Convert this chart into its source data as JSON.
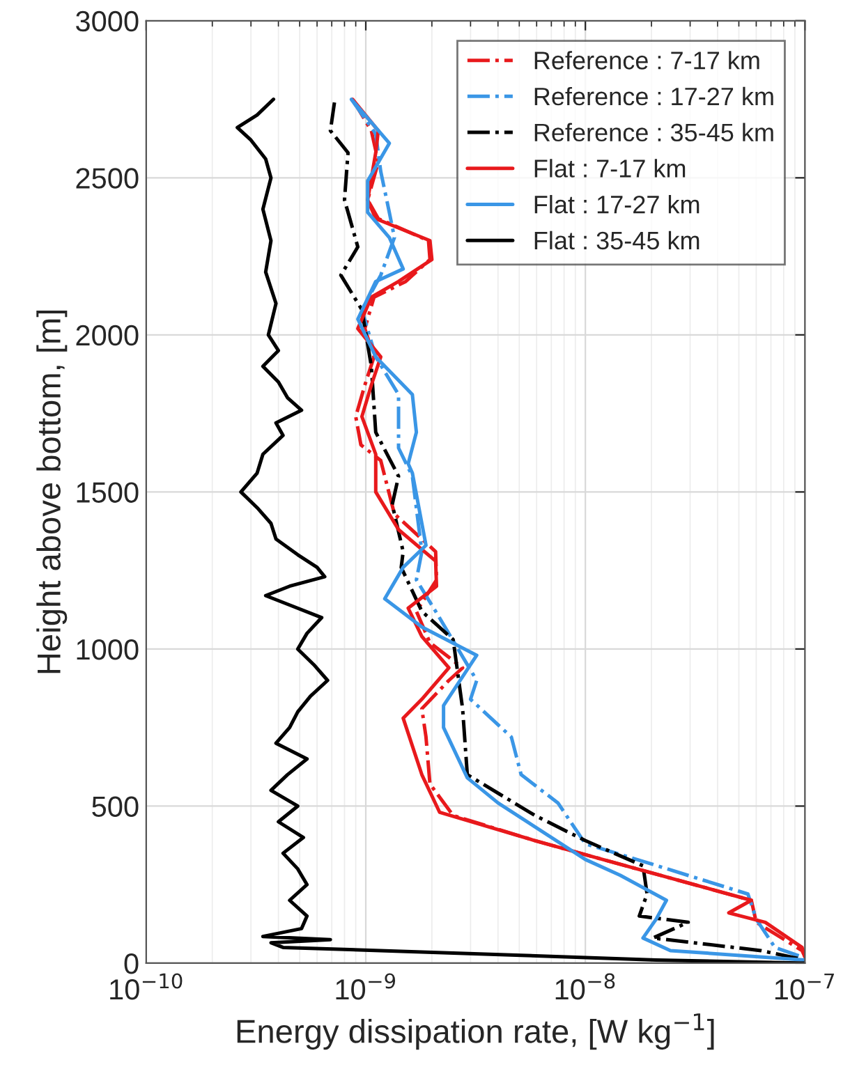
{
  "chart_data": {
    "type": "line",
    "xlabel": "Energy dissipation rate, [W kg$^{−1}$]",
    "ylabel": "Height above bottom, [m]",
    "log": "x",
    "xlim": [
      1e-10,
      1e-07
    ],
    "xticks": [
      {
        "value": 1e-10,
        "label": "10$^{−10}$"
      },
      {
        "value": 1e-09,
        "label": "10$^{−9}$"
      },
      {
        "value": 1e-08,
        "label": "10$^{−8}$"
      },
      {
        "value": 1e-07,
        "label": "10$^{−7}$"
      }
    ],
    "ylim": [
      0,
      3000
    ],
    "yticks": [
      0,
      500,
      1000,
      1500,
      2000,
      2500,
      3000
    ],
    "grid": true,
    "legend": "top right",
    "series": [
      {
        "name": "Reference : 7-17 km",
        "color": "#e8191c",
        "line_style": "dashdot",
        "x": [
          8.7e-10,
          1.06e-09,
          1.14e-09,
          1.02e-09,
          1.14e-09,
          1.93e-09,
          1.96e-09,
          1.52e-09,
          1.09e-09,
          9.9e-10,
          1.09e-09,
          9.9e-10,
          9e-10,
          9.5e-10,
          1.17e-09,
          1.35e-09,
          2.08e-09,
          2.1e-09,
          1.7e-09,
          1.96e-09,
          2.76e-09,
          2.39e-09,
          1.8e-09,
          1.88e-09,
          1.96e-09,
          2.5e-09,
          5.9e-09,
          1.2e-08,
          5.7e-08,
          6e-08,
          9.7e-08,
          1e-07
        ],
        "values": [
          2750,
          2650,
          2550,
          2430,
          2370,
          2300,
          2240,
          2170,
          2120,
          2020,
          1930,
          1840,
          1740,
          1650,
          1600,
          1430,
          1310,
          1220,
          1120,
          1020,
          940,
          900,
          810,
          720,
          570,
          470,
          390,
          330,
          200,
          130,
          40,
          20
        ]
      },
      {
        "name": "Reference : 17-27 km",
        "color": "#3a96e6",
        "line_style": "dashdot",
        "x": [
          8.6e-10,
          1.11e-09,
          1.17e-09,
          1.28e-09,
          1.35e-09,
          1.17e-09,
          9.6e-10,
          1.11e-09,
          1.41e-09,
          1.41e-09,
          1.63e-09,
          1.8e-09,
          1.7e-09,
          2.08e-09,
          3.2e-09,
          3e-09,
          4.6e-09,
          5.1e-09,
          7.5e-09,
          1e-08,
          1.91e-08,
          5.5e-08,
          6e-08,
          7.3e-08,
          9.7e-08
        ],
        "values": [
          2750,
          2640,
          2520,
          2390,
          2310,
          2190,
          2080,
          1930,
          1810,
          1640,
          1550,
          1310,
          1220,
          1120,
          900,
          840,
          720,
          600,
          510,
          380,
          320,
          220,
          140,
          50,
          20
        ]
      },
      {
        "name": "Reference : 35-45 km",
        "color": "#000000",
        "line_style": "dashdot",
        "x": [
          7.2e-10,
          6.9e-10,
          8.3e-10,
          8e-10,
          9.2e-10,
          7.7e-10,
          9.6e-10,
          1.06e-09,
          1.11e-09,
          1.41e-09,
          1.32e-09,
          1.48e-09,
          1.45e-09,
          1.8e-09,
          2.5e-09,
          2.76e-09,
          2.9e-09,
          5.9e-09,
          1e-08,
          1.83e-08,
          1.91e-08,
          1.76e-08,
          2.94e-08,
          2.03e-08,
          6.3e-08,
          1e-07
        ],
        "values": [
          2740,
          2650,
          2580,
          2430,
          2280,
          2190,
          2080,
          1900,
          1690,
          1550,
          1460,
          1310,
          1260,
          1120,
          1030,
          810,
          600,
          470,
          390,
          310,
          220,
          150,
          130,
          80,
          40,
          10
        ]
      },
      {
        "name": "Flat : 7-17 km",
        "color": "#e8191c",
        "line_style": "solid",
        "x": [
          8.7e-10,
          1.14e-09,
          1.11e-09,
          1.02e-09,
          1.11e-09,
          1.96e-09,
          2e-09,
          1.41e-09,
          1.06e-09,
          9.2e-10,
          1.17e-09,
          1.06e-09,
          9.6e-10,
          1.11e-09,
          1.11e-09,
          1.11e-09,
          1.41e-09,
          2.08e-09,
          2.1e-09,
          1.56e-09,
          1.8e-09,
          2.39e-09,
          1.8e-09,
          1.48e-09,
          1.8e-09,
          2.17e-09,
          5.9e-09,
          1.2e-08,
          5.7e-08,
          4.5e-08,
          6.6e-08,
          9.7e-08,
          1e-07
        ],
        "values": [
          2750,
          2650,
          2580,
          2430,
          2370,
          2300,
          2240,
          2170,
          2120,
          2020,
          1930,
          1840,
          1740,
          1620,
          1530,
          1500,
          1380,
          1280,
          1200,
          1130,
          1040,
          940,
          840,
          780,
          600,
          480,
          390,
          330,
          200,
          160,
          130,
          50,
          20
        ]
      },
      {
        "name": "Flat : 17-27 km",
        "color": "#3a96e6",
        "line_style": "solid",
        "x": [
          8.6e-10,
          1.28e-09,
          1.02e-09,
          1.02e-09,
          1.28e-09,
          1.48e-09,
          1.11e-09,
          9.2e-10,
          1.11e-09,
          1.63e-09,
          1.7e-09,
          1.56e-09,
          1.63e-09,
          1.88e-09,
          1.48e-09,
          1.22e-09,
          1.8e-09,
          3.2e-09,
          2.26e-09,
          2.26e-09,
          2.9e-09,
          4e-09,
          1e-08,
          1.44e-08,
          2.34e-08,
          2.1e-08,
          1.83e-08,
          2.44e-08,
          1e-07
        ],
        "values": [
          2750,
          2610,
          2490,
          2390,
          2310,
          2210,
          2170,
          2050,
          1930,
          1810,
          1690,
          1590,
          1560,
          1330,
          1260,
          1160,
          1070,
          980,
          820,
          750,
          590,
          510,
          330,
          280,
          200,
          140,
          80,
          40,
          10
        ]
      },
      {
        "name": "Flat : 35-45 km",
        "color": "#000000",
        "line_style": "solid",
        "x": [
          3.8e-10,
          3.2e-10,
          2.6e-10,
          3e-10,
          3.5e-10,
          3.7e-10,
          3.4e-10,
          3.7e-10,
          3.5e-10,
          3.9e-10,
          3.6e-10,
          4e-10,
          3.4e-10,
          4e-10,
          4.4e-10,
          5.1e-10,
          3.9e-10,
          4.2e-10,
          3.4e-10,
          3.2e-10,
          2.7e-10,
          3.2e-10,
          3.7e-10,
          3.9e-10,
          4.9e-10,
          6e-10,
          6.5e-10,
          4.5e-10,
          3.5e-10,
          4.5e-10,
          6.3e-10,
          5.4e-10,
          4.9e-10,
          5.8e-10,
          6.7e-10,
          5.6e-10,
          4.9e-10,
          4.5e-10,
          3.9e-10,
          5.4e-10,
          4.4e-10,
          3.7e-10,
          4.9e-10,
          4e-10,
          5.2e-10,
          4.2e-10,
          4.9e-10,
          5.4e-10,
          4.5e-10,
          5.4e-10,
          5.1e-10,
          3.4e-10,
          6.9e-10,
          3.7e-10,
          4.2e-10,
          5.1e-09,
          2.1e-08,
          1e-07
        ],
        "values": [
          2750,
          2700,
          2660,
          2620,
          2560,
          2500,
          2400,
          2300,
          2200,
          2100,
          2000,
          1950,
          1900,
          1850,
          1800,
          1760,
          1720,
          1680,
          1620,
          1560,
          1500,
          1450,
          1400,
          1350,
          1300,
          1260,
          1230,
          1200,
          1170,
          1140,
          1100,
          1050,
          1000,
          950,
          900,
          850,
          800,
          750,
          700,
          650,
          600,
          550,
          500,
          450,
          400,
          350,
          300,
          250,
          200,
          150,
          110,
          85,
          75,
          65,
          50,
          25,
          10,
          0
        ]
      }
    ]
  }
}
